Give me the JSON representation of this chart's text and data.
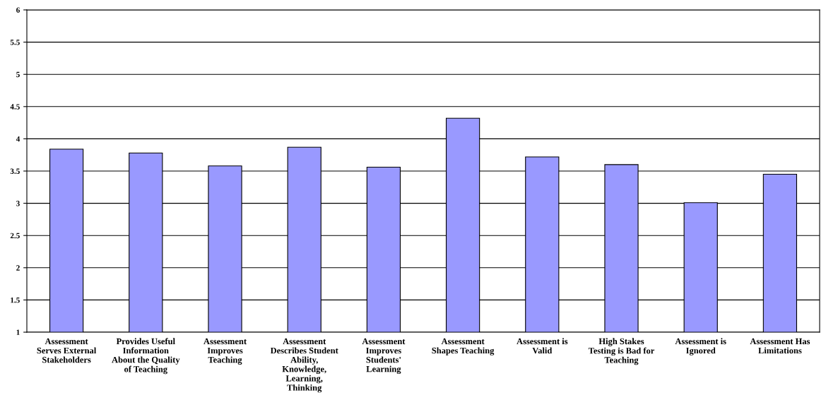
{
  "chart_data": {
    "type": "bar",
    "categories": [
      "Assessment\nServes External\nStakeholders",
      "Provides Useful\nInformation\nAbout the Quality\nof Teaching",
      "Assessment\nImproves\nTeaching",
      "Assessment\nDescribes Student\nAbility,\nKnowledge,\nLearning,\nThinking",
      "Assessment\nImproves\nStudents'\nLearning",
      "Assessment\nShapes Teaching",
      "Assessment is\nValid",
      "High Stakes\nTesting is Bad for\nTeaching",
      "Assessment is\nIgnored",
      "Assessment Has\nLimitations"
    ],
    "values": [
      3.84,
      3.78,
      3.58,
      3.87,
      3.56,
      4.32,
      3.72,
      3.6,
      3.01,
      3.45
    ],
    "color": "#9999ff",
    "ylim": [
      1,
      6
    ],
    "yticks": [
      1,
      1.5,
      2,
      2.5,
      3,
      3.5,
      4,
      4.5,
      5,
      5.5,
      6
    ],
    "grid": "y",
    "legend": false
  }
}
